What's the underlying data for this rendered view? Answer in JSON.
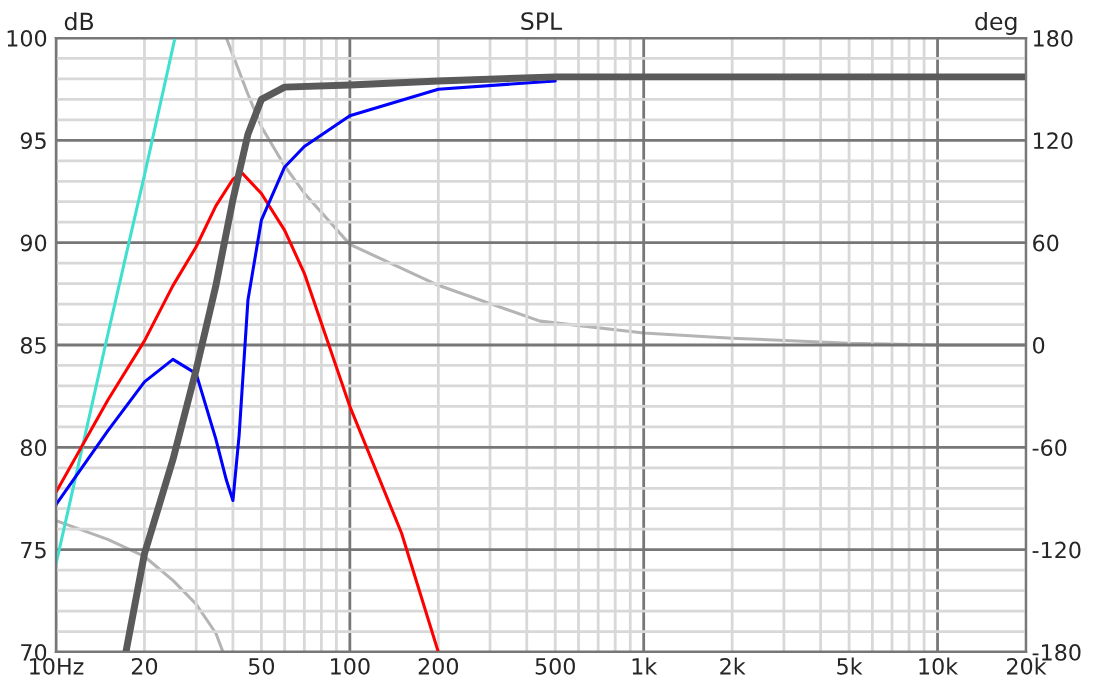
{
  "chart_data": {
    "type": "line",
    "title": "SPL",
    "ylabel": "dB",
    "y2label": "deg",
    "log": "x",
    "grid": true,
    "marker": "none",
    "line_style": "solid",
    "xlim": [
      10,
      20000
    ],
    "xticks": [
      {
        "value": 10,
        "label": "10Hz"
      },
      20,
      {
        "value": 30,
        "label": null
      },
      {
        "value": 40,
        "label": null
      },
      50,
      {
        "value": 60,
        "label": null
      },
      {
        "value": 70,
        "label": null
      },
      {
        "value": 80,
        "label": null
      },
      {
        "value": 90,
        "label": null
      },
      {
        "value": 100,
        "label": "100"
      },
      200,
      {
        "value": 300,
        "label": null
      },
      {
        "value": 400,
        "label": null
      },
      500,
      {
        "value": 600,
        "label": null
      },
      {
        "value": 700,
        "label": null
      },
      {
        "value": 800,
        "label": null
      },
      {
        "value": 900,
        "label": null
      },
      {
        "value": 1000,
        "label": "1k"
      },
      {
        "value": 2000,
        "label": "2k"
      },
      {
        "value": 3000,
        "label": null
      },
      {
        "value": 4000,
        "label": null
      },
      {
        "value": 5000,
        "label": "5k"
      },
      {
        "value": 6000,
        "label": null
      },
      {
        "value": 7000,
        "label": null
      },
      {
        "value": 8000,
        "label": null
      },
      {
        "value": 9000,
        "label": null
      },
      {
        "value": 10000,
        "label": "10k"
      },
      {
        "value": 20000,
        "label": "20k"
      }
    ],
    "ylim": [
      70,
      100
    ],
    "yticks": [
      70,
      {
        "value": 71,
        "label": null
      },
      {
        "value": 72,
        "label": null
      },
      {
        "value": 73,
        "label": null
      },
      {
        "value": 74,
        "label": null
      },
      75,
      {
        "value": 76,
        "label": null
      },
      {
        "value": 77,
        "label": null
      },
      {
        "value": 78,
        "label": null
      },
      {
        "value": 79,
        "label": null
      },
      80,
      {
        "value": 81,
        "label": null
      },
      {
        "value": 82,
        "label": null
      },
      {
        "value": 83,
        "label": null
      },
      {
        "value": 84,
        "label": null
      },
      85,
      {
        "value": 86,
        "label": null
      },
      {
        "value": 87,
        "label": null
      },
      {
        "value": 88,
        "label": null
      },
      {
        "value": 89,
        "label": null
      },
      90,
      {
        "value": 91,
        "label": null
      },
      {
        "value": 92,
        "label": null
      },
      {
        "value": 93,
        "label": null
      },
      {
        "value": 94,
        "label": null
      },
      95,
      {
        "value": 96,
        "label": null
      },
      {
        "value": 97,
        "label": null
      },
      {
        "value": 98,
        "label": null
      },
      {
        "value": 99,
        "label": null
      },
      100
    ],
    "y2lim": [
      -180,
      180
    ],
    "y2ticks": [
      -180,
      -120,
      -60,
      0,
      60,
      120,
      180
    ],
    "series": [
      {
        "color": "#b4b4b4",
        "axis": "y2",
        "x": [
          10,
          15,
          20,
          25,
          30,
          35,
          37,
          37.5,
          38,
          45,
          50,
          60,
          70,
          100,
          200,
          444,
          1000,
          2000,
          5000,
          10000,
          20000
        ],
        "values": [
          -103,
          -114,
          -124,
          -138,
          -152,
          -169,
          -180,
          null,
          180,
          147,
          128,
          105,
          89,
          59,
          35,
          14,
          7,
          4,
          1,
          0,
          0
        ]
      },
      {
        "color": "#40e0d0",
        "x": [
          10,
          15,
          20,
          25.4
        ],
        "values": [
          74.3,
          85.5,
          93.3,
          100
        ]
      },
      {
        "color": "#ff0000",
        "x": [
          10,
          15,
          20,
          25,
          30,
          35,
          40,
          43,
          50,
          60,
          70,
          100,
          150,
          200
        ],
        "values": [
          77.8,
          82.3,
          85.2,
          87.9,
          89.8,
          91.8,
          93.1,
          93.4,
          92.4,
          90.6,
          88.5,
          82.0,
          75.8,
          70
        ]
      },
      {
        "color": "#0000ff",
        "x": [
          10,
          15,
          20,
          25,
          30,
          35,
          38,
          40,
          42,
          45,
          50,
          60,
          70,
          100,
          200,
          500
        ],
        "values": [
          77.2,
          80.8,
          83.2,
          84.3,
          83.6,
          80.4,
          78.4,
          77.4,
          80.6,
          87.2,
          91.1,
          93.7,
          94.7,
          96.2,
          97.5,
          97.9
        ]
      },
      {
        "color": "#5a5a5a",
        "x": [
          17.3,
          20,
          25,
          30,
          35,
          40,
          45,
          50,
          60,
          100,
          200,
          500,
          20000
        ],
        "values": [
          70,
          74.8,
          79.4,
          83.8,
          87.9,
          92.1,
          95.3,
          97.0,
          97.6,
          97.7,
          97.9,
          98.1,
          98.1
        ]
      }
    ]
  }
}
